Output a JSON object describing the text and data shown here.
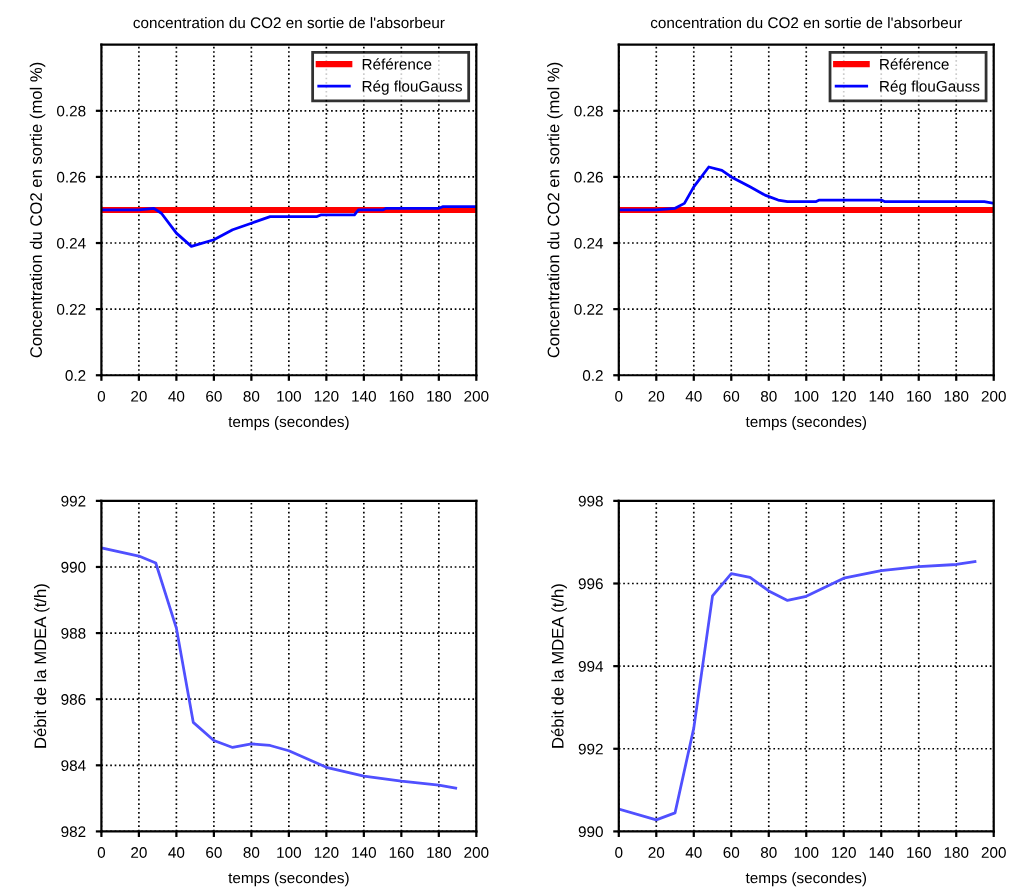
{
  "chart_data": [
    {
      "type": "line",
      "title": "concentration du CO2 en sortie de l'absorbeur",
      "xlabel": "temps (secondes)",
      "ylabel": "Concentration du CO2 en sortie (mol %)",
      "xlim": [
        0,
        200
      ],
      "xticks": [
        0,
        20,
        40,
        60,
        80,
        100,
        120,
        140,
        160,
        180,
        200
      ],
      "ylim": [
        0.2,
        0.3
      ],
      "yticks": [
        0.2,
        0.22,
        0.24,
        0.26,
        0.28
      ],
      "grid": true,
      "legend": "top right",
      "line_style": "solid",
      "marker": "none",
      "series": [
        {
          "name": "Référence",
          "color": "#ff0000",
          "x": [
            0,
            200
          ],
          "values": [
            0.25,
            0.25
          ]
        },
        {
          "name": "Rég flouGauss",
          "color": "#0000ff",
          "x": [
            0,
            20,
            28,
            32,
            40,
            48,
            60,
            70,
            80,
            90,
            115,
            117,
            135,
            137,
            150,
            152,
            180,
            182,
            200
          ],
          "values": [
            0.25,
            0.25,
            0.2505,
            0.249,
            0.243,
            0.239,
            0.241,
            0.244,
            0.246,
            0.248,
            0.248,
            0.2485,
            0.2485,
            0.25,
            0.25,
            0.2505,
            0.2505,
            0.251,
            0.251
          ]
        }
      ]
    },
    {
      "type": "line",
      "title": "concentration du CO2 en sortie de l'absorbeur",
      "xlabel": "temps (secondes)",
      "ylabel": "Concentration du CO2 en sortie (mol %)",
      "xlim": [
        0,
        200
      ],
      "xticks": [
        0,
        20,
        40,
        60,
        80,
        100,
        120,
        140,
        160,
        180,
        200
      ],
      "ylim": [
        0.2,
        0.3
      ],
      "yticks": [
        0.2,
        0.22,
        0.24,
        0.26,
        0.28
      ],
      "grid": true,
      "legend": "top right",
      "line_style": "solid",
      "marker": "none",
      "series": [
        {
          "name": "Référence",
          "color": "#ff0000",
          "x": [
            0,
            200
          ],
          "values": [
            0.25,
            0.25
          ]
        },
        {
          "name": "Rég flouGauss",
          "color": "#0000ff",
          "x": [
            0,
            20,
            30,
            35,
            40,
            48,
            55,
            60,
            70,
            78,
            85,
            90,
            105,
            107,
            140,
            142,
            195,
            200
          ],
          "values": [
            0.25,
            0.25,
            0.2505,
            0.252,
            0.257,
            0.263,
            0.262,
            0.26,
            0.257,
            0.2545,
            0.253,
            0.2525,
            0.2525,
            0.253,
            0.253,
            0.2525,
            0.2525,
            0.252
          ]
        }
      ]
    },
    {
      "type": "line",
      "xlabel": "temps (secondes)",
      "ylabel": "Débit de la MDEA (t/h)",
      "xlim": [
        0,
        200
      ],
      "xticks": [
        0,
        20,
        40,
        60,
        80,
        100,
        120,
        140,
        160,
        180,
        200
      ],
      "ylim": [
        982,
        992
      ],
      "yticks": [
        982,
        984,
        986,
        988,
        990,
        992
      ],
      "grid": true,
      "line_style": "solid",
      "marker": "none",
      "series": [
        {
          "color": "#5050ff",
          "x": [
            0,
            20,
            29,
            40,
            49,
            60,
            70,
            80,
            90,
            100,
            120,
            140,
            160,
            180,
            189
          ],
          "values": [
            990.58,
            990.33,
            990.12,
            988.15,
            985.3,
            984.75,
            984.54,
            984.65,
            984.6,
            984.44,
            983.94,
            983.67,
            983.52,
            983.4,
            983.31
          ]
        }
      ]
    },
    {
      "type": "line",
      "xlabel": "temps (secondes)",
      "ylabel": "Débit de la MDEA (t/h)",
      "xlim": [
        0,
        200
      ],
      "xticks": [
        0,
        20,
        40,
        60,
        80,
        100,
        120,
        140,
        160,
        180,
        200
      ],
      "ylim": [
        990,
        998
      ],
      "yticks": [
        990,
        992,
        994,
        996,
        998
      ],
      "grid": true,
      "line_style": "solid",
      "marker": "none",
      "series": [
        {
          "color": "#5050ff",
          "x": [
            0,
            20,
            30,
            40,
            50,
            60,
            70,
            80,
            90,
            100,
            120,
            140,
            160,
            180,
            190
          ],
          "values": [
            990.54,
            990.28,
            990.45,
            992.5,
            995.7,
            996.24,
            996.15,
            995.82,
            995.59,
            995.69,
            996.13,
            996.31,
            996.41,
            996.46,
            996.53
          ]
        }
      ]
    }
  ]
}
